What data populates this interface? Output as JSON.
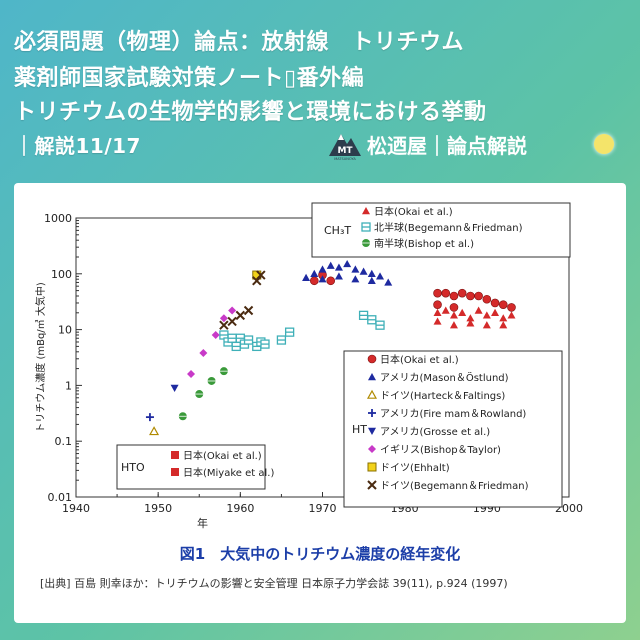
{
  "header": {
    "line1": "必須問題（物理）論点：放射線　トリチウム",
    "line2": "薬剤師国家試験対策ノート▯番外編",
    "line3": "トリチウムの生物学的影響と環境における挙動",
    "line4": "｜解説11/17",
    "brand": "松迺屋｜論点解説",
    "logo_text": "MT",
    "logo_sub": "MATSUNOYA"
  },
  "figure": {
    "caption": "図1　大気中のトリチウム濃度の経年変化",
    "source": "[出典] 百島 則幸ほか：トリチウムの影響と安全管理 日本原子力学会誌 39(11), p.924 (1997)"
  },
  "colors": {
    "red": "#d42a2a",
    "blue": "#1e2aa0",
    "teal": "#3fb0b8",
    "green": "#3a9a3a",
    "yellow": "#f2d21a",
    "magenta": "#c83ac8",
    "black": "#4a2a10"
  },
  "chart_data": {
    "type": "scatter",
    "xlabel": "年",
    "ylabel": "トリチウム濃度 (mBq/㎥ 大気中)",
    "xlim": [
      1940,
      2000
    ],
    "ylim": [
      0.01,
      1000
    ],
    "yscale": "log",
    "x_ticks": [
      "1940",
      "1950",
      "1960",
      "1970",
      "1980",
      "1990",
      "2000"
    ],
    "y_ticks": [
      "0.01",
      "0.1",
      "1",
      "10",
      "100",
      "1000"
    ],
    "grid": false,
    "legends": [
      {
        "group": "CH3T",
        "group_label": "CH₃T",
        "entries": [
          "日本(Okai et al.)",
          "北半球(Begemann＆Friedman)",
          "南半球(Bishop et al.)"
        ]
      },
      {
        "group": "HT",
        "group_label": "HT",
        "entries": [
          "日本(Okai et al.)",
          "アメリカ(Mason＆Östlund)",
          "ドイツ(Harteck＆Faltings)",
          "アメリカ(Fire mam＆Rowland)",
          "アメリカ(Grosse et al.)",
          "イギリス(Bishop＆Taylor)",
          "ドイツ(Ehhalt)",
          "ドイツ(Begemann＆Friedman)"
        ]
      },
      {
        "group": "HTO",
        "group_label": "HTO",
        "entries": [
          "日本(Okai et al.)",
          "日本(Miyake et al.)"
        ]
      }
    ],
    "series": [
      {
        "name": "CH3T 日本(Okai et al.)",
        "marker": "triangle",
        "color": "red",
        "points": [
          [
            1984,
            20
          ],
          [
            1985,
            22
          ],
          [
            1986,
            18
          ],
          [
            1987,
            20
          ],
          [
            1988,
            16
          ],
          [
            1989,
            22
          ],
          [
            1990,
            18
          ],
          [
            1991,
            20
          ],
          [
            1992,
            16
          ],
          [
            1993,
            18
          ],
          [
            1984,
            14
          ],
          [
            1986,
            12
          ],
          [
            1988,
            13
          ],
          [
            1990,
            12
          ],
          [
            1992,
            12
          ]
        ]
      },
      {
        "name": "CH3T 北半球(Begemann＆Friedman)",
        "marker": "square-bar",
        "color": "teal",
        "points": [
          [
            1958,
            8
          ],
          [
            1958.5,
            6
          ],
          [
            1959,
            7
          ],
          [
            1959.5,
            5
          ],
          [
            1960,
            7
          ],
          [
            1960.5,
            5.5
          ],
          [
            1961,
            6.5
          ],
          [
            1962,
            5
          ],
          [
            1962.5,
            6
          ],
          [
            1963,
            5.5
          ],
          [
            1965,
            6.5
          ],
          [
            1966,
            9
          ],
          [
            1975,
            18
          ],
          [
            1976,
            15
          ],
          [
            1977,
            12
          ]
        ]
      },
      {
        "name": "CH3T 南半球(Bishop et al.)",
        "marker": "hex",
        "color": "green",
        "points": [
          [
            1953,
            0.28
          ],
          [
            1955,
            0.7
          ],
          [
            1956.5,
            1.2
          ],
          [
            1958,
            1.8
          ]
        ]
      },
      {
        "name": "HT 日本(Okai et al.)",
        "marker": "circle",
        "color": "red",
        "points": [
          [
            1969,
            75
          ],
          [
            1970,
            95
          ],
          [
            1971,
            75
          ],
          [
            1984,
            45
          ],
          [
            1985,
            45
          ],
          [
            1986,
            40
          ],
          [
            1987,
            45
          ],
          [
            1988,
            40
          ],
          [
            1989,
            40
          ],
          [
            1990,
            35
          ],
          [
            1991,
            30
          ],
          [
            1992,
            28
          ],
          [
            1993,
            25
          ],
          [
            1984,
            28
          ],
          [
            1986,
            25
          ]
        ]
      },
      {
        "name": "HT アメリカ(Mason＆Östlund)",
        "marker": "triangle",
        "color": "blue",
        "points": [
          [
            1968,
            85
          ],
          [
            1969,
            100
          ],
          [
            1970,
            120
          ],
          [
            1971,
            140
          ],
          [
            1972,
            130
          ],
          [
            1973,
            150
          ],
          [
            1974,
            120
          ],
          [
            1975,
            110
          ],
          [
            1976,
            100
          ],
          [
            1977,
            90
          ],
          [
            1970,
            80
          ],
          [
            1972,
            90
          ],
          [
            1974,
            80
          ],
          [
            1976,
            75
          ],
          [
            1978,
            70
          ]
        ]
      },
      {
        "name": "HT ドイツ(Harteck＆Faltings)",
        "marker": "triangle-open",
        "color": "yellow",
        "points": [
          [
            1949.5,
            0.15
          ]
        ]
      },
      {
        "name": "HT アメリカ(Fire mam＆Rowland)",
        "marker": "plus",
        "color": "blue",
        "points": [
          [
            1949,
            0.27
          ]
        ]
      },
      {
        "name": "HT アメリカ(Grosse et al.)",
        "marker": "triangle-down",
        "color": "blue",
        "points": [
          [
            1952,
            0.9
          ]
        ]
      },
      {
        "name": "HT イギリス(Bishop＆Taylor)",
        "marker": "diamond",
        "color": "magenta",
        "points": [
          [
            1954,
            1.6
          ],
          [
            1955.5,
            3.8
          ],
          [
            1957,
            8
          ],
          [
            1958,
            16
          ],
          [
            1959,
            22
          ]
        ]
      },
      {
        "name": "HT ドイツ(Ehhalt)",
        "marker": "square-open",
        "color": "yellow",
        "points": [
          [
            1962,
            95
          ]
        ]
      },
      {
        "name": "HT ドイツ(Begemann＆Friedman)",
        "marker": "x",
        "color": "black",
        "points": [
          [
            1958,
            12
          ],
          [
            1959,
            14
          ],
          [
            1960,
            18
          ],
          [
            1961,
            22
          ],
          [
            1962,
            75
          ],
          [
            1962.5,
            95
          ]
        ]
      },
      {
        "name": "HTO 日本(Okai et al.)",
        "marker": "square",
        "color": "red",
        "points": []
      },
      {
        "name": "HTO 日本(Miyake et al.)",
        "marker": "square",
        "color": "red",
        "points": []
      }
    ]
  }
}
